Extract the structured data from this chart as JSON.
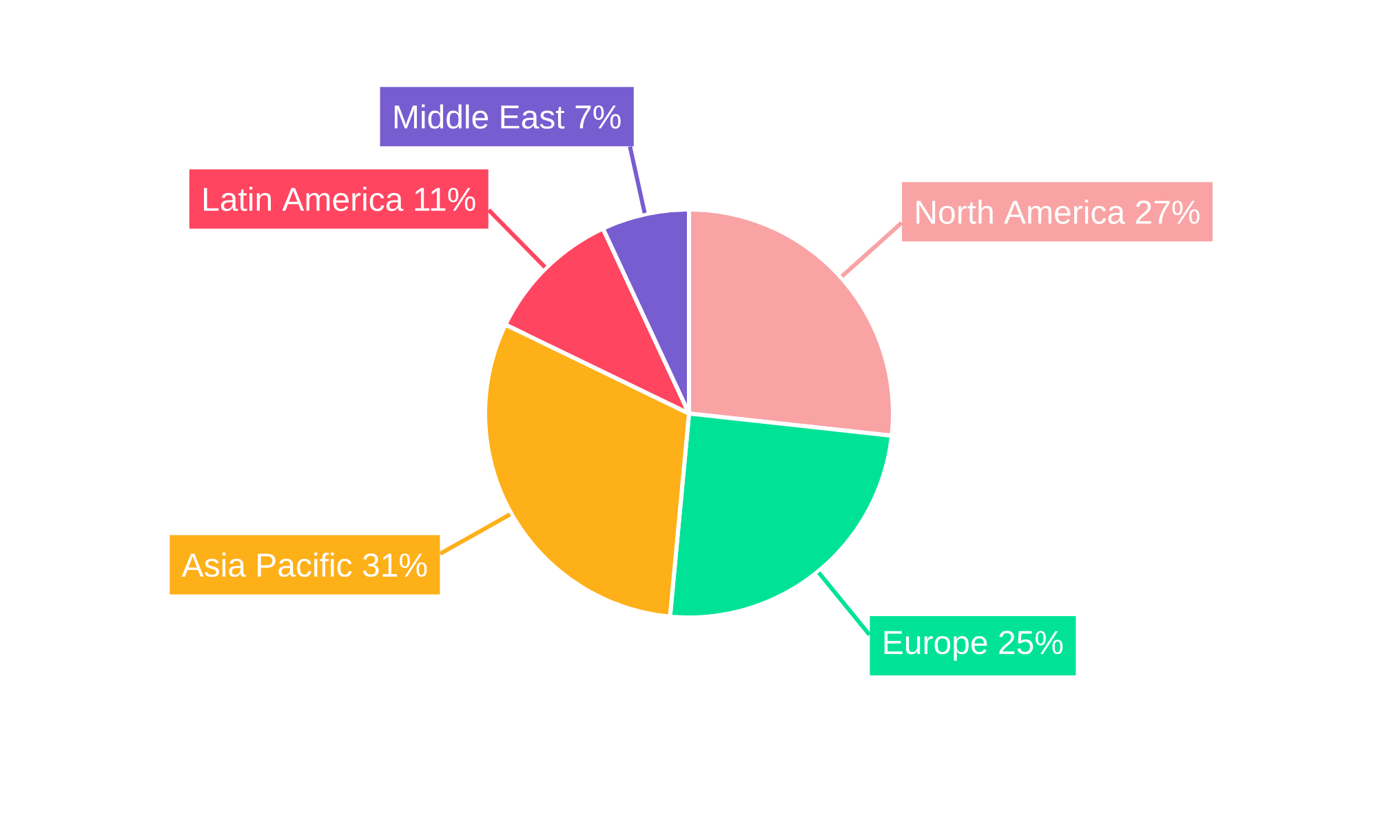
{
  "chart_data": {
    "type": "pie",
    "categories": [
      "North America",
      "Europe",
      "Asia Pacific",
      "Latin America",
      "Middle East"
    ],
    "values": [
      27,
      25,
      31,
      11,
      7
    ],
    "value_labels": [
      "27%",
      "25%",
      "31%",
      "11%",
      "7%"
    ],
    "colors": [
      "#f9a3a4",
      "#00e396",
      "#feb019",
      "#ff4560",
      "#775dd0"
    ]
  }
}
